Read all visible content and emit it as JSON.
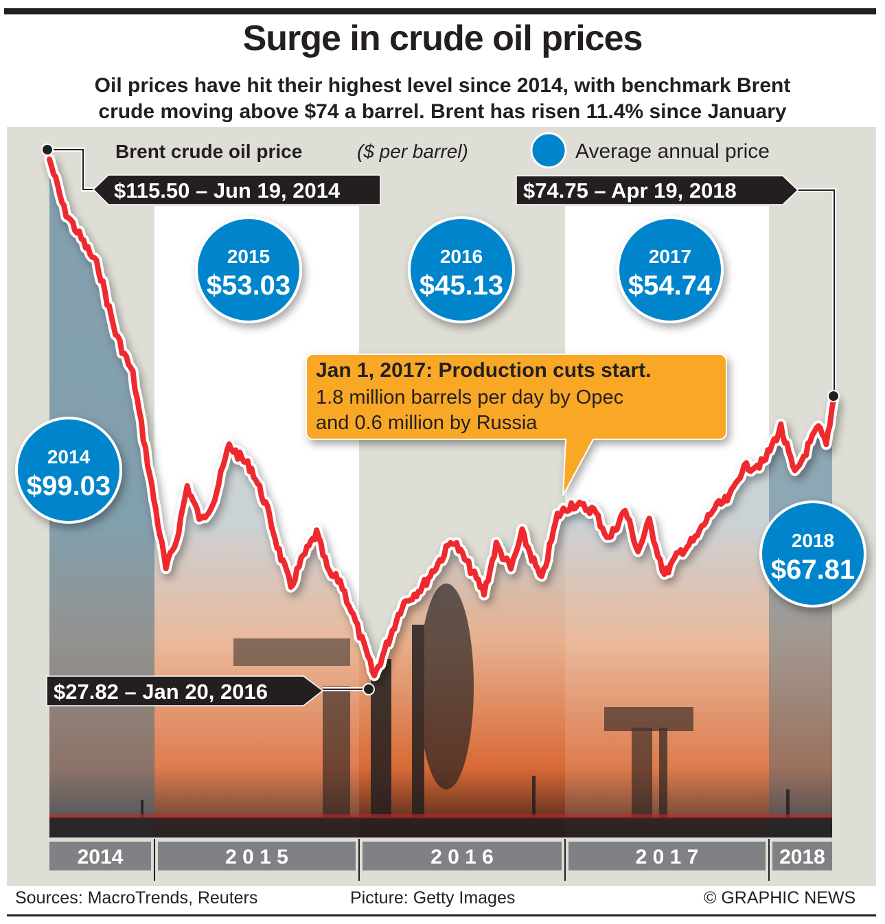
{
  "header": {
    "title": "Surge in crude oil prices",
    "subtitle_line1": "Oil prices have hit their highest level since 2014, with benchmark Brent",
    "subtitle_line2": "crude moving above $74 a barrel. Brent has risen 11.4% since January"
  },
  "legend": {
    "series_label": "Brent crude oil price",
    "series_unit": "($ per barrel)",
    "bubble_label": "Average annual price"
  },
  "colors": {
    "line": "#ee2a2f",
    "bubble": "#0085cc",
    "callout": "#f9a825",
    "tag": "#231f20",
    "year_band": "#808184",
    "panel": "#deded6"
  },
  "annotations": {
    "high": "$115.50 – Jun 19, 2014",
    "low": "$27.82 – Jan 20, 2016",
    "latest": "$74.75 – Apr 19, 2018",
    "callout_title": "Jan 1, 2017: Production cuts start.",
    "callout_line1": "1.8 million barrels per day by Opec",
    "callout_line2": "and 0.6 million by Russia"
  },
  "footer": {
    "sources": "Sources: MacroTrends, Reuters",
    "picture": "Picture: Getty Images",
    "credit": "© GRAPHIC NEWS"
  },
  "chart_data": {
    "type": "line",
    "title": "Brent crude oil price ($ per barrel)",
    "xlabel": "",
    "ylabel": "$ per barrel",
    "x_range": [
      "2014-06-19",
      "2018-04-19"
    ],
    "ylim": [
      20,
      120
    ],
    "grid": false,
    "year_labels": [
      "2014",
      "2 0 1 5",
      "2 0 1 6",
      "2 0 1 7",
      "2018"
    ],
    "series": [
      {
        "name": "Brent crude oil price",
        "x": [
          "2014-06-19",
          "2014-07-15",
          "2014-08-15",
          "2014-09-15",
          "2014-10-15",
          "2014-11-15",
          "2014-12-15",
          "2015-01-13",
          "2015-02-01",
          "2015-02-20",
          "2015-03-17",
          "2015-04-10",
          "2015-05-06",
          "2015-05-25",
          "2015-06-15",
          "2015-07-10",
          "2015-08-03",
          "2015-08-24",
          "2015-09-15",
          "2015-10-09",
          "2015-11-01",
          "2015-11-20",
          "2015-12-10",
          "2016-01-20",
          "2016-02-11",
          "2016-03-10",
          "2016-04-15",
          "2016-05-20",
          "2016-06-08",
          "2016-07-10",
          "2016-08-03",
          "2016-08-25",
          "2016-09-20",
          "2016-10-10",
          "2016-11-14",
          "2016-12-12",
          "2017-01-06",
          "2017-02-15",
          "2017-03-14",
          "2017-04-12",
          "2017-05-05",
          "2017-05-25",
          "2017-06-21",
          "2017-07-20",
          "2017-08-15",
          "2017-09-15",
          "2017-10-15",
          "2017-11-07",
          "2017-12-15",
          "2018-01-15",
          "2018-02-09",
          "2018-03-01",
          "2018-03-23",
          "2018-04-06",
          "2018-04-19"
        ],
        "values": [
          115.5,
          107,
          102,
          97,
          86,
          79,
          62,
          46,
          51,
          60,
          54,
          58,
          67,
          65,
          63,
          57,
          49,
          43,
          48,
          52,
          45,
          44,
          39,
          27.82,
          33,
          40,
          43,
          48,
          51,
          46,
          42,
          50,
          46,
          52,
          44,
          55,
          57,
          56,
          51,
          56,
          49,
          54,
          45,
          49,
          51,
          56,
          58,
          63,
          64,
          70,
          62,
          66,
          70,
          67,
          74.75
        ]
      }
    ],
    "annual_averages": [
      {
        "year": "2014",
        "value": "$99.03"
      },
      {
        "year": "2015",
        "value": "$53.03"
      },
      {
        "year": "2016",
        "value": "$45.13"
      },
      {
        "year": "2017",
        "value": "$54.74"
      },
      {
        "year": "2018",
        "value": "$67.81"
      }
    ]
  }
}
